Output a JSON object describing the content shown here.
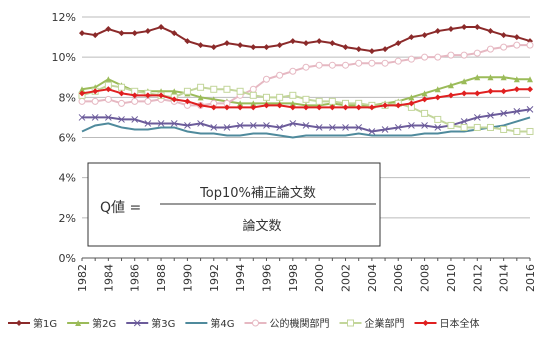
{
  "chart_data": {
    "type": "line",
    "title": "",
    "xlabel": "",
    "ylabel": "",
    "ylim": [
      0,
      12
    ],
    "y_ticks": [
      "0%",
      "2%",
      "4%",
      "6%",
      "8%",
      "10%",
      "12%"
    ],
    "x_tick_labels": [
      "1982",
      "1984",
      "1986",
      "1988",
      "1990",
      "1992",
      "1994",
      "1996",
      "1998",
      "2000",
      "2002",
      "2004",
      "2006",
      "2008",
      "2010",
      "2012",
      "2014",
      "2016"
    ],
    "grid": true,
    "legend_position": "bottom",
    "formula": {
      "lhs": "Q値 =",
      "numerator": "Top10%補正論文数",
      "denominator": "論文数"
    },
    "x": [
      1982,
      1983,
      1984,
      1985,
      1986,
      1987,
      1988,
      1989,
      1990,
      1991,
      1992,
      1993,
      1994,
      1995,
      1996,
      1997,
      1998,
      1999,
      2000,
      2001,
      2002,
      2003,
      2004,
      2005,
      2006,
      2007,
      2008,
      2009,
      2010,
      2011,
      2012,
      2013,
      2014,
      2015,
      2016
    ],
    "series": [
      {
        "name": "第1G",
        "color": "#8b2a2a",
        "marker": "diamond",
        "values": [
          11.2,
          11.1,
          11.4,
          11.2,
          11.2,
          11.3,
          11.5,
          11.2,
          10.8,
          10.6,
          10.5,
          10.7,
          10.6,
          10.5,
          10.5,
          10.6,
          10.8,
          10.7,
          10.8,
          10.7,
          10.5,
          10.4,
          10.3,
          10.4,
          10.7,
          11.0,
          11.1,
          11.3,
          11.4,
          11.5,
          11.5,
          11.3,
          11.1,
          11.0,
          10.8
        ]
      },
      {
        "name": "第2G",
        "color": "#9bbb59",
        "marker": "triangle",
        "values": [
          8.4,
          8.5,
          8.9,
          8.6,
          8.3,
          8.3,
          8.3,
          8.3,
          8.2,
          8.0,
          7.9,
          7.8,
          7.7,
          7.7,
          7.7,
          7.7,
          7.7,
          7.6,
          7.6,
          7.7,
          7.6,
          7.6,
          7.6,
          7.7,
          7.8,
          8.0,
          8.2,
          8.4,
          8.6,
          8.8,
          9.0,
          9.0,
          9.0,
          8.9,
          8.9
        ]
      },
      {
        "name": "第3G",
        "color": "#6b5b9a",
        "marker": "x",
        "values": [
          7.0,
          7.0,
          7.0,
          6.9,
          6.9,
          6.7,
          6.7,
          6.7,
          6.6,
          6.7,
          6.5,
          6.5,
          6.6,
          6.6,
          6.6,
          6.5,
          6.7,
          6.6,
          6.5,
          6.5,
          6.5,
          6.5,
          6.3,
          6.4,
          6.5,
          6.6,
          6.6,
          6.5,
          6.6,
          6.8,
          7.0,
          7.1,
          7.2,
          7.3,
          7.4
        ]
      },
      {
        "name": "第4G",
        "color": "#4f8a9c",
        "marker": "none",
        "values": [
          6.3,
          6.6,
          6.7,
          6.5,
          6.4,
          6.4,
          6.5,
          6.5,
          6.3,
          6.2,
          6.2,
          6.1,
          6.1,
          6.2,
          6.2,
          6.1,
          6.0,
          6.1,
          6.1,
          6.1,
          6.1,
          6.2,
          6.1,
          6.1,
          6.1,
          6.1,
          6.2,
          6.2,
          6.3,
          6.3,
          6.4,
          6.5,
          6.6,
          6.8,
          7.0
        ]
      },
      {
        "name": "公的機関部門",
        "color": "#e6b8c2",
        "marker": "circle",
        "values": [
          7.8,
          7.8,
          7.9,
          7.7,
          7.8,
          7.8,
          7.9,
          7.8,
          7.6,
          7.6,
          7.7,
          7.7,
          8.1,
          8.4,
          8.9,
          9.1,
          9.3,
          9.5,
          9.6,
          9.6,
          9.6,
          9.7,
          9.7,
          9.7,
          9.8,
          9.9,
          10.0,
          10.0,
          10.1,
          10.1,
          10.2,
          10.4,
          10.5,
          10.6,
          10.6
        ]
      },
      {
        "name": "企業部門",
        "color": "#c3d69b",
        "marker": "square",
        "values": [
          8.1,
          8.3,
          8.6,
          8.5,
          8.3,
          8.2,
          8.1,
          8.0,
          8.3,
          8.5,
          8.4,
          8.4,
          8.3,
          8.1,
          8.0,
          8.0,
          8.1,
          7.9,
          7.8,
          7.8,
          7.7,
          7.7,
          7.6,
          7.6,
          7.7,
          7.5,
          7.2,
          6.9,
          6.6,
          6.5,
          6.5,
          6.5,
          6.4,
          6.3,
          6.3
        ]
      },
      {
        "name": "日本全体",
        "color": "#e02020",
        "marker": "diamond",
        "values": [
          8.2,
          8.3,
          8.4,
          8.2,
          8.1,
          8.1,
          8.1,
          7.9,
          7.8,
          7.6,
          7.5,
          7.5,
          7.5,
          7.5,
          7.6,
          7.6,
          7.5,
          7.5,
          7.5,
          7.5,
          7.5,
          7.5,
          7.5,
          7.6,
          7.6,
          7.7,
          7.9,
          8.0,
          8.1,
          8.2,
          8.2,
          8.3,
          8.3,
          8.4,
          8.4
        ]
      }
    ]
  }
}
